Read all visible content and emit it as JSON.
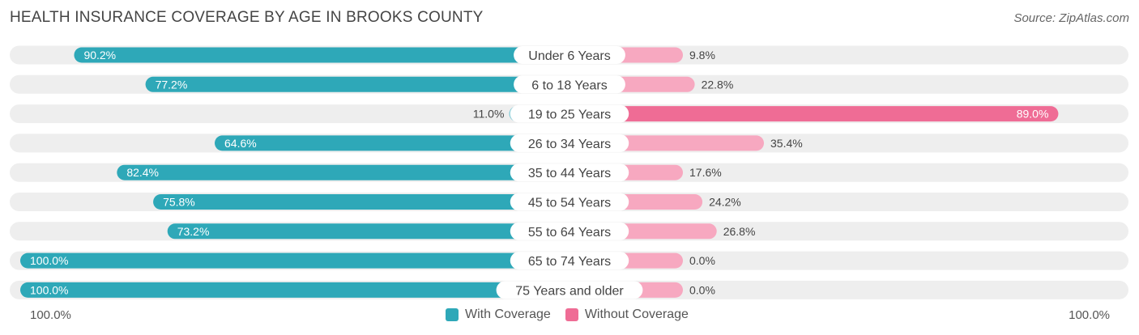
{
  "title": "HEALTH INSURANCE COVERAGE BY AGE IN BROOKS COUNTY",
  "source": "Source: ZipAtlas.com",
  "colors": {
    "with_strong": "#2ea8b8",
    "with_light": "#8ecfd9",
    "without_strong": "#ef6c95",
    "without_light": "#f7a8c0",
    "track": "#eeeeee"
  },
  "axis": {
    "left_label": "100.0%",
    "right_label": "100.0%"
  },
  "legend": {
    "with": "With Coverage",
    "without": "Without Coverage"
  },
  "chart_data": {
    "type": "bar",
    "orientation": "diverging-horizontal",
    "title": "HEALTH INSURANCE COVERAGE BY AGE IN BROOKS COUNTY",
    "categories": [
      "Under 6 Years",
      "6 to 18 Years",
      "19 to 25 Years",
      "26 to 34 Years",
      "35 to 44 Years",
      "45 to 54 Years",
      "55 to 64 Years",
      "65 to 74 Years",
      "75 Years and older"
    ],
    "series": [
      {
        "name": "With Coverage",
        "values": [
          90.2,
          77.2,
          11.0,
          64.6,
          82.4,
          75.8,
          73.2,
          100.0,
          100.0
        ],
        "labels": [
          "90.2%",
          "77.2%",
          "11.0%",
          "64.6%",
          "82.4%",
          "75.8%",
          "73.2%",
          "100.0%",
          "100.0%"
        ]
      },
      {
        "name": "Without Coverage",
        "values": [
          9.8,
          22.8,
          89.0,
          35.4,
          17.6,
          24.2,
          26.8,
          0.0,
          0.0
        ],
        "labels": [
          "9.8%",
          "22.8%",
          "89.0%",
          "35.4%",
          "17.6%",
          "24.2%",
          "26.8%",
          "0.0%",
          "0.0%"
        ]
      }
    ],
    "xlim": [
      0,
      100
    ],
    "legend_position": "bottom-center"
  }
}
